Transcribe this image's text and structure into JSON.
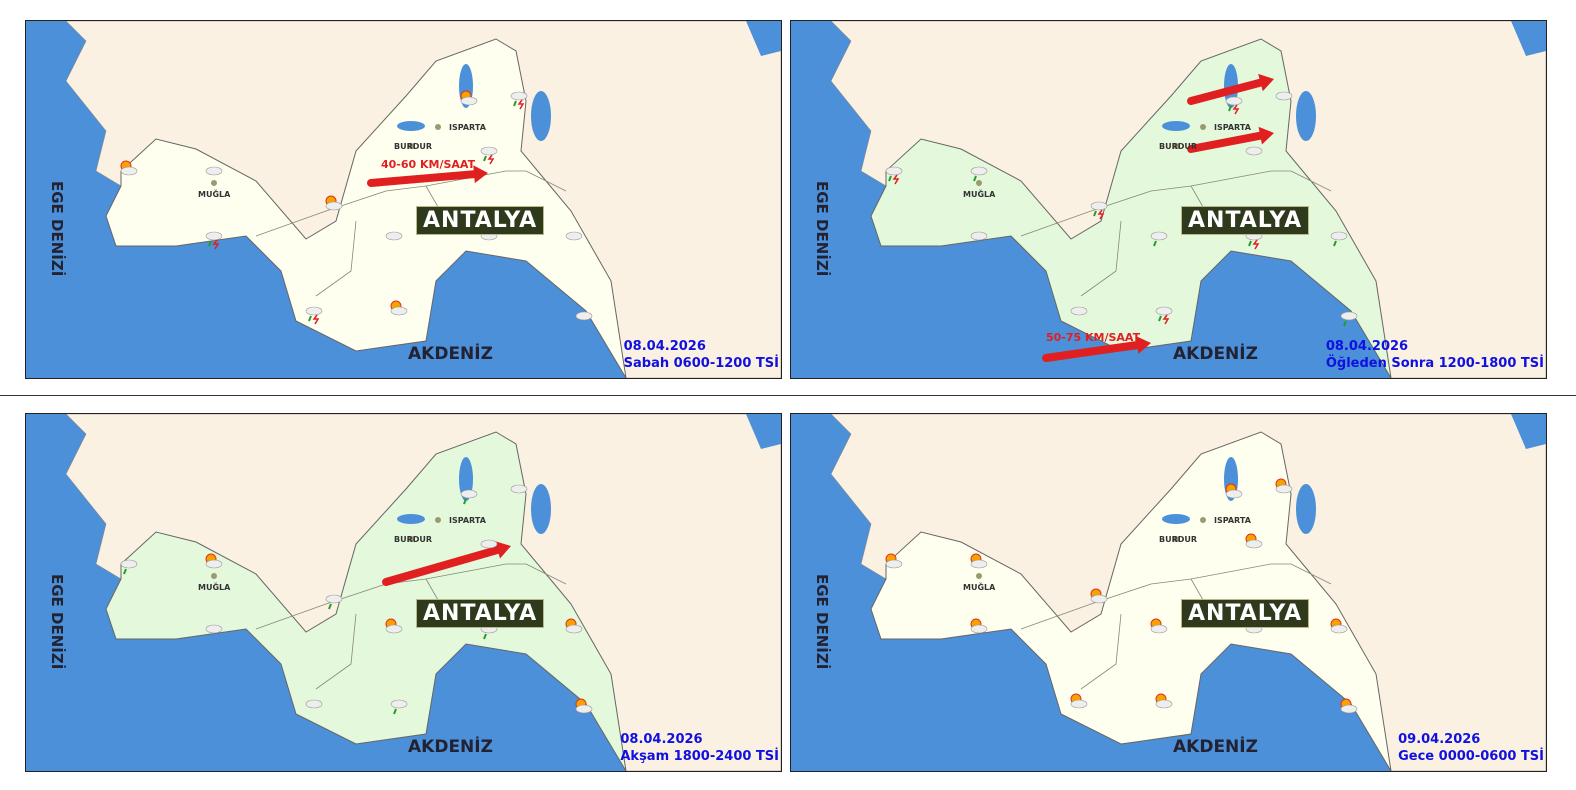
{
  "colors": {
    "sea": "#4b90d8",
    "land": "#fbf1e2",
    "region_yellow": "#fffff0",
    "region_green": "#e4f8dc",
    "label": "#1010e0",
    "wind": "#e02020"
  },
  "labels": {
    "isparta": "ISPARTA",
    "burdur": "BURDUR",
    "mugla": "MUĞLA",
    "antalya": "ANTALYA",
    "akdeniz": "AKDENİZ",
    "ege": "EGE DENİZİ"
  },
  "panels": [
    {
      "date": "08.04.2026",
      "period": "Sabah 0600-1200 TSİ",
      "wind": "40-60 KM/SAAT",
      "region": "yellow",
      "icons": [
        "partly-cloudy",
        "cloudy",
        "rain-thunder"
      ]
    },
    {
      "date": "08.04.2026",
      "period": "Öğleden Sonra 1200-1800 TSİ",
      "wind": "50-75 KM/SAAT",
      "region": "green",
      "icons": [
        "rain-thunder",
        "rain",
        "cloudy"
      ]
    },
    {
      "date": "08.04.2026",
      "period": "Akşam 1800-2400 TSİ",
      "wind": "",
      "region": "green",
      "icons": [
        "rain",
        "partly-cloudy",
        "cloudy"
      ]
    },
    {
      "date": "09.04.2026",
      "period": "Gece 0000-0600 TSİ",
      "wind": "",
      "region": "yellow",
      "icons": [
        "partly-cloudy",
        "sunny-cloudy"
      ]
    }
  ]
}
